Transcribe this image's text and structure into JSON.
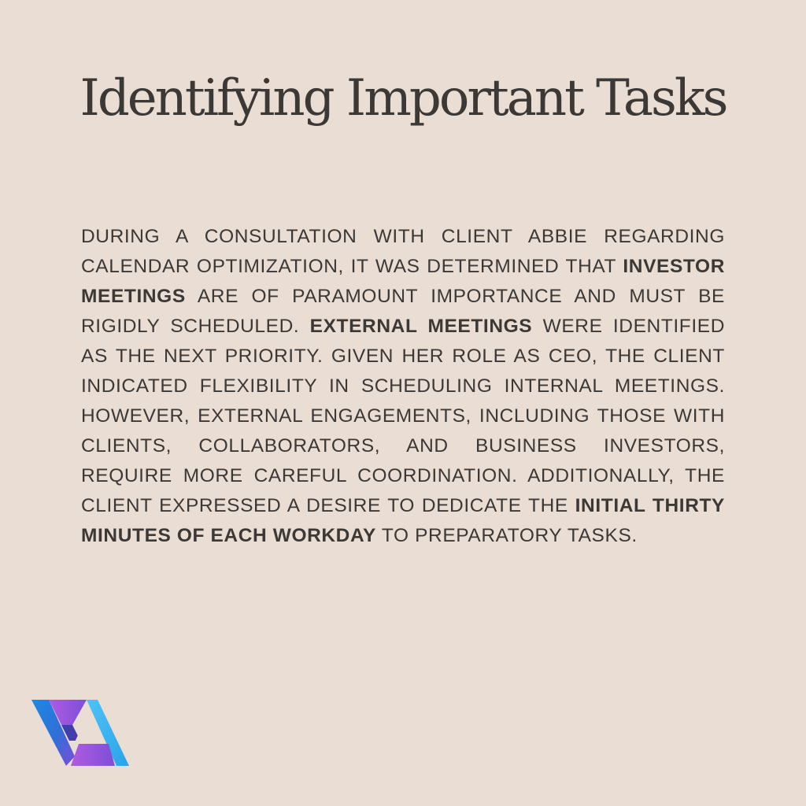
{
  "title": "Identifying Important Tasks",
  "paragraph": [
    {
      "text": "During a consultation with client Abbie regarding calendar optimization, it was determined that ",
      "bold": false
    },
    {
      "text": "investor meetings",
      "bold": true
    },
    {
      "text": " are of paramount importance and must be rigidly scheduled. ",
      "bold": false
    },
    {
      "text": "External meetings",
      "bold": true
    },
    {
      "text": " were identified as the next priority. Given her role as CEO, the client indicated flexibility in scheduling internal meetings. However, external engagements, including those with clients, collaborators, and business investors, require more careful coordination. Additionally, the client expressed a desire to dedicate the ",
      "bold": false
    },
    {
      "text": "initial thirty minutes of each workday",
      "bold": true
    },
    {
      "text": " to preparatory tasks.",
      "bold": false
    }
  ],
  "logo": {
    "icon": "va-monogram-logo",
    "colors": {
      "blue": "#1e88e5",
      "cyan": "#4fc3f7",
      "purple": "#9b4fd6",
      "navy": "#3a3fb0"
    }
  },
  "colors": {
    "background": "#eaddd4",
    "text": "#3b3836"
  }
}
